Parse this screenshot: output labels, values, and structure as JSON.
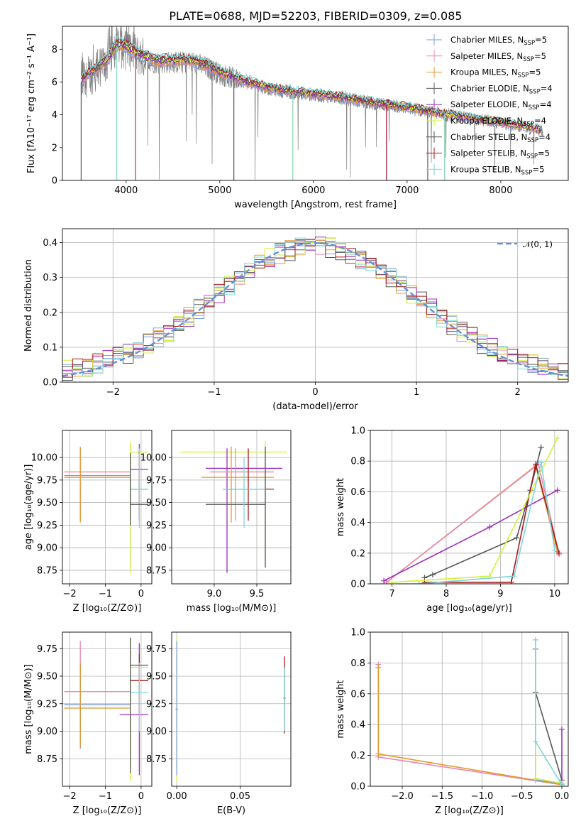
{
  "title": "PLATE=0688, MJD=52203, FIBERID=0309, z=0.085",
  "colors": {
    "grid": "#b0b0b0",
    "data": "#808080",
    "models": [
      "#7b9ed9",
      "#e887b0",
      "#e39a2b",
      "#5a5a5a",
      "#9b2fbf",
      "#d4f03a",
      "#555555",
      "#a31a1a",
      "#7fd6d8"
    ],
    "gauss": "#6a8fd8"
  },
  "chart_data": [
    {
      "type": "line",
      "id": "spectrum",
      "xlabel": "wavelength [Angstrom, rest frame]",
      "ylabel": "Flux [fλ10⁻¹⁷ erg cm⁻² s⁻¹ A⁻¹]",
      "xlim": [
        3320,
        8720
      ],
      "ylim": [
        0,
        9.4
      ],
      "xticks": [
        4000,
        5000,
        6000,
        7000,
        8000
      ],
      "yticks": [
        0,
        2,
        4,
        6,
        8
      ],
      "legend_position": "top-right",
      "series": [
        {
          "name": "Chabrier MILES, N",
          "sub": "SSP",
          "suffix": "=5",
          "color": "#7b9ed9"
        },
        {
          "name": "Salpeter MILES, N",
          "sub": "SSP",
          "suffix": "=5",
          "color": "#e887b0"
        },
        {
          "name": "Kroupa MILES, N",
          "sub": "SSP",
          "suffix": "=5",
          "color": "#e39a2b"
        },
        {
          "name": "Chabrier ELODIE, N",
          "sub": "SSP",
          "suffix": "=4",
          "color": "#5a5a5a"
        },
        {
          "name": "Salpeter ELODIE, N",
          "sub": "SSP",
          "suffix": "=4",
          "color": "#9b2fbf"
        },
        {
          "name": "Kroupa ELODIE, N",
          "sub": "SSP",
          "suffix": "=4",
          "color": "#d4f03a"
        },
        {
          "name": "Chabrier STELIB, N",
          "sub": "SSP",
          "suffix": "=4",
          "color": "#555555"
        },
        {
          "name": "Salpeter STELIB, N",
          "sub": "SSP",
          "suffix": "=5",
          "color": "#a31a1a"
        },
        {
          "name": "Kroupa STELIB, N",
          "sub": "SSP",
          "suffix": "=5",
          "color": "#7fd6d8"
        }
      ],
      "continuum": [
        [
          3520,
          6.0
        ],
        [
          3600,
          6.4
        ],
        [
          3800,
          7.2
        ],
        [
          3900,
          8.2
        ],
        [
          4000,
          8.0
        ],
        [
          4100,
          7.7
        ],
        [
          4300,
          7.2
        ],
        [
          4500,
          7.2
        ],
        [
          4700,
          7.2
        ],
        [
          4900,
          6.8
        ],
        [
          5000,
          6.5
        ],
        [
          5200,
          6.1
        ],
        [
          5500,
          5.6
        ],
        [
          5800,
          5.3
        ],
        [
          6000,
          5.2
        ],
        [
          6300,
          5.0
        ],
        [
          6600,
          4.7
        ],
        [
          7000,
          4.4
        ],
        [
          7400,
          4.0
        ],
        [
          8000,
          3.5
        ],
        [
          8300,
          3.2
        ],
        [
          8450,
          3.0
        ]
      ]
    },
    {
      "type": "histogram",
      "id": "residuals",
      "xlabel": "(data-model)/error",
      "ylabel": "Normed distribution",
      "xlim": [
        -2.5,
        2.5
      ],
      "ylim": [
        0,
        0.44
      ],
      "xticks": [
        -2,
        -1,
        0,
        1,
        2
      ],
      "yticks": [
        0.0,
        0.1,
        0.2,
        0.3,
        0.4
      ],
      "legend": "𝒩(0, 1)",
      "legend_position": "top-right",
      "gaussian": {
        "mu": 0,
        "sigma": 1
      }
    },
    {
      "type": "scatter",
      "id": "age_vs_Z",
      "xlabel": "Z [log₁₀(Z/Z⊙)]",
      "ylabel": "age  [log₁₀(age/yr)]",
      "xlim": [
        -2.2,
        0.3
      ],
      "ylim": [
        8.6,
        10.3
      ],
      "xticks": [
        -2,
        -1,
        0
      ],
      "yticks": [
        8.75,
        9.0,
        9.25,
        9.5,
        9.75,
        10.0
      ]
    },
    {
      "type": "scatter",
      "id": "age_vs_mass",
      "xlabel": "mass [log₁₀(M/M⊙)]",
      "xlim": [
        8.5,
        9.9
      ],
      "ylim": [
        8.6,
        10.3
      ],
      "xticks": [
        9.0,
        9.5
      ],
      "yticks": [
        8.75,
        9.0,
        9.25,
        9.5,
        9.75,
        10.0
      ]
    },
    {
      "type": "line",
      "id": "massweight_vs_age",
      "xlabel": "age  [log₁₀(age/yr)]",
      "ylabel": "mass weight",
      "xlim": [
        6.6,
        10.25
      ],
      "ylim": [
        0,
        1.0
      ],
      "xticks": [
        7,
        8,
        9,
        10
      ],
      "yticks": [
        0.0,
        0.2,
        0.4,
        0.6,
        0.8,
        1.0
      ],
      "series": [
        {
          "color": "#e39a2b",
          "x": [
            6.9,
            9.65,
            10.05
          ],
          "y": [
            0.01,
            0.77,
            0.21
          ]
        },
        {
          "color": "#e887b0",
          "x": [
            6.9,
            9.7,
            10.08
          ],
          "y": [
            0.01,
            0.78,
            0.19
          ]
        },
        {
          "color": "#9b2fbf",
          "x": [
            6.85,
            8.8,
            10.05
          ],
          "y": [
            0.02,
            0.37,
            0.61
          ]
        },
        {
          "color": "#555555",
          "x": [
            7.6,
            7.75,
            9.3,
            9.55,
            9.75
          ],
          "y": [
            0.04,
            0.06,
            0.3,
            0.61,
            0.89
          ]
        },
        {
          "color": "#a31a1a",
          "x": [
            7.6,
            9.2,
            9.65,
            10.08
          ],
          "y": [
            0.01,
            0.01,
            0.78,
            0.2
          ]
        },
        {
          "color": "#d4f03a",
          "x": [
            7.0,
            8.8,
            10.05
          ],
          "y": [
            0.01,
            0.05,
            0.95
          ]
        },
        {
          "color": "#7fd6d8",
          "x": [
            7.5,
            9.25,
            9.75,
            10.0
          ],
          "y": [
            0.0,
            0.05,
            0.79,
            0.22
          ]
        }
      ]
    },
    {
      "type": "scatter",
      "id": "mass_vs_Z",
      "xlabel": "Z [log₁₀(Z/Z⊙)]",
      "ylabel": "mass [log₁₀(M/M⊙)]",
      "xlim": [
        -2.2,
        0.3
      ],
      "ylim": [
        8.5,
        9.9
      ],
      "xticks": [
        -2,
        -1,
        0
      ],
      "yticks": [
        8.75,
        9.0,
        9.25,
        9.5,
        9.75
      ]
    },
    {
      "type": "scatter",
      "id": "mass_vs_ebv",
      "xlabel": "E(B-V)",
      "xlim": [
        -0.004,
        0.09
      ],
      "ylim": [
        8.5,
        9.9
      ],
      "xticks": [
        0.0,
        0.05
      ],
      "xticklabels": [
        "0.00",
        "0.05"
      ],
      "yticks": [
        8.75,
        9.0,
        9.25,
        9.5,
        9.75
      ]
    },
    {
      "type": "line",
      "id": "massweight_vs_Z",
      "xlabel": "Z [log₁₀(Z/Z⊙)]",
      "ylabel": "mass weight",
      "xlim": [
        -2.4,
        0.08
      ],
      "ylim": [
        0,
        1.0
      ],
      "xticks": [
        -2.0,
        -1.5,
        -1.0,
        -0.5,
        0.0
      ],
      "yticks": [
        0.0,
        0.2,
        0.4,
        0.6,
        0.8,
        1.0
      ],
      "series": [
        {
          "color": "#e887b0",
          "x": [
            -2.3,
            -2.3,
            0.0
          ],
          "y": [
            0.79,
            0.19,
            0.01
          ]
        },
        {
          "color": "#e39a2b",
          "x": [
            -2.3,
            -2.3,
            0.0
          ],
          "y": [
            0.77,
            0.21,
            0.01
          ]
        },
        {
          "color": "#555555",
          "x": [
            -0.33,
            -0.33,
            0.0
          ],
          "y": [
            0.89,
            0.61,
            0.04
          ]
        },
        {
          "color": "#7b9ed9",
          "x": [
            -0.33,
            -0.33,
            0.0
          ],
          "y": [
            0.89,
            0.04,
            0.02
          ]
        },
        {
          "color": "#9b2fbf",
          "x": [
            0.0,
            0.0
          ],
          "y": [
            0.37,
            0.02
          ]
        },
        {
          "color": "#d4f03a",
          "x": [
            -0.33,
            -0.33,
            0.0
          ],
          "y": [
            0.95,
            0.05,
            0.02
          ]
        },
        {
          "color": "#7fd6d8",
          "x": [
            -0.33,
            -0.33,
            0.0
          ],
          "y": [
            0.95,
            0.29,
            0.01
          ]
        }
      ]
    }
  ]
}
